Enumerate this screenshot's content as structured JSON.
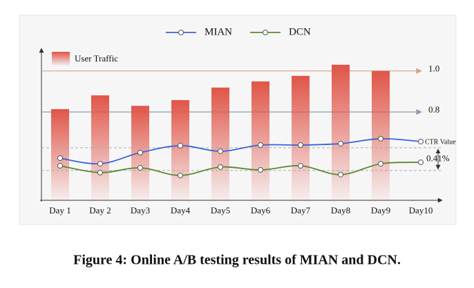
{
  "chart_data": {
    "type": "bar_line",
    "caption": "Figure 4: Online A/B testing results of MIAN and DCN.",
    "categories": [
      "Day 1",
      "Day 2",
      "Day3",
      "Day4",
      "Day5",
      "Day6",
      "Day7",
      "Day8",
      "Day9",
      "Day10"
    ],
    "bar_series": {
      "name": "User Traffic",
      "color": "#e05548",
      "values": [
        0.814,
        0.881,
        0.83,
        0.858,
        0.919,
        0.949,
        0.976,
        1.03,
        1.0,
        null
      ]
    },
    "series": [
      {
        "name": "MIAN",
        "color": "#3a62d9",
        "values": [
          0.575,
          0.548,
          0.602,
          0.636,
          0.609,
          0.639,
          0.639,
          0.646,
          0.67,
          0.656
        ]
      },
      {
        "name": "DCN",
        "color": "#5a8a2e",
        "values": [
          0.538,
          0.505,
          0.528,
          0.491,
          0.532,
          0.518,
          0.538,
          0.495,
          0.548,
          0.555
        ]
      }
    ],
    "ylim": [
      0.37,
      1.11
    ],
    "reference_lines": [
      {
        "value": 1,
        "label": "1.0",
        "color": "#d4a08a"
      },
      {
        "value": 0.8,
        "label": "0.8",
        "color": "#8a9ab5"
      }
    ],
    "ctr_label": "CTR Value",
    "ctr_band": {
      "values": [
        0.626,
        0.515
      ],
      "label": "0.41%"
    }
  }
}
